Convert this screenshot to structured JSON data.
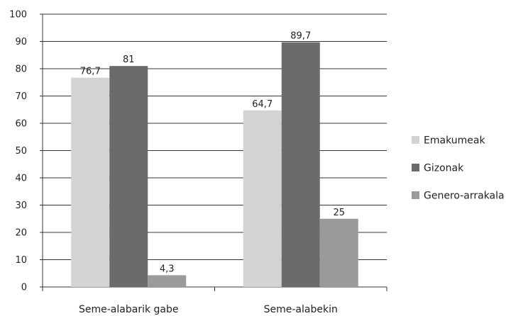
{
  "chart_data": {
    "type": "bar",
    "categories": [
      "Seme-alabarik gabe",
      "Seme-alabekin"
    ],
    "series": [
      {
        "name": "Emakumeak",
        "values": [
          76.7,
          64.7
        ],
        "labels": [
          "76,7",
          "64,7"
        ],
        "color": "#d3d3d3"
      },
      {
        "name": "Gizonak",
        "values": [
          81,
          89.7
        ],
        "labels": [
          "81",
          "89,7"
        ],
        "color": "#6b6b6e"
      },
      {
        "name": "Genero-arrakala",
        "values": [
          4.3,
          25
        ],
        "labels": [
          "4,3",
          "25"
        ],
        "color": "#9a9a9d"
      }
    ],
    "ylim": [
      0,
      100
    ],
    "yticks": [
      "0",
      "10",
      "20",
      "30",
      "40",
      "50",
      "60",
      "70",
      "80",
      "90",
      "100"
    ],
    "grid": true,
    "legend_position": "right"
  }
}
